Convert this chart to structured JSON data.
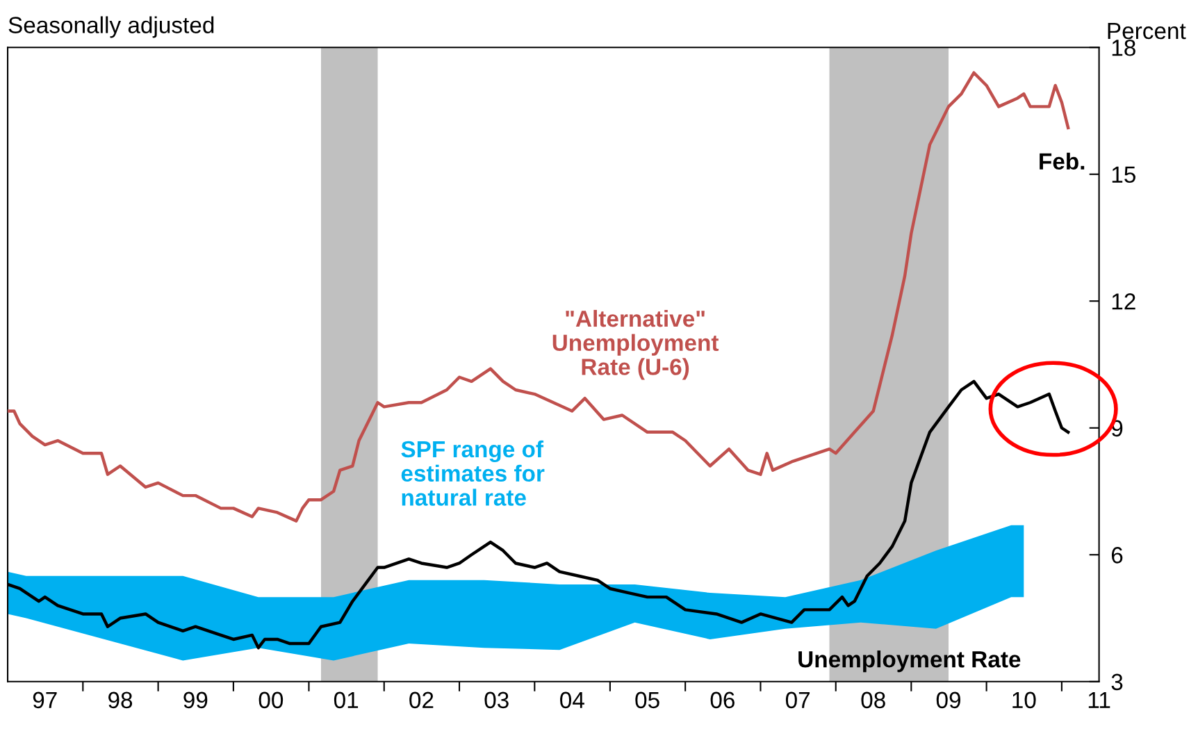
{
  "chart_data": {
    "type": "line",
    "subtitle": "Seasonally adjusted",
    "ylabel": "Percent",
    "xlim": [
      "1997-01",
      "2011-07"
    ],
    "ylim": [
      3,
      18
    ],
    "yticks": [
      3,
      6,
      9,
      12,
      15,
      18
    ],
    "xticks": [
      {
        "value": "1997-07",
        "label": "97"
      },
      {
        "value": "1998-07",
        "label": "98"
      },
      {
        "value": "1999-07",
        "label": "99"
      },
      {
        "value": "2000-07",
        "label": "00"
      },
      {
        "value": "2001-07",
        "label": "01"
      },
      {
        "value": "2002-07",
        "label": "02"
      },
      {
        "value": "2003-07",
        "label": "03"
      },
      {
        "value": "2004-07",
        "label": "04"
      },
      {
        "value": "2005-07",
        "label": "05"
      },
      {
        "value": "2006-07",
        "label": "06"
      },
      {
        "value": "2007-07",
        "label": "07"
      },
      {
        "value": "2008-07",
        "label": "08"
      },
      {
        "value": "2009-07",
        "label": "09"
      },
      {
        "value": "2010-07",
        "label": "10"
      },
      {
        "value": "2011-07",
        "label": "11"
      },
      {
        "value": "1998-01",
        "label": null
      },
      {
        "value": "1999-01",
        "label": null
      },
      {
        "value": "2000-01",
        "label": null
      },
      {
        "value": "2001-01",
        "label": null
      },
      {
        "value": "2002-01",
        "label": null
      },
      {
        "value": "2003-01",
        "label": null
      },
      {
        "value": "2004-01",
        "label": null
      },
      {
        "value": "2005-01",
        "label": null
      },
      {
        "value": "2006-01",
        "label": null
      },
      {
        "value": "2007-01",
        "label": null
      },
      {
        "value": "2008-01",
        "label": null
      },
      {
        "value": "2009-01",
        "label": null
      },
      {
        "value": "2010-01",
        "label": null
      },
      {
        "value": "2011-01",
        "label": null
      }
    ],
    "bands": [
      {
        "axis": "x",
        "from": "2001-03",
        "to": "2001-12",
        "color": "#c0c0c0"
      },
      {
        "axis": "x",
        "from": "2007-12",
        "to": "2009-07",
        "color": "#c0c0c0"
      }
    ],
    "series": [
      {
        "type": "area",
        "name": "SPF range of\nestimates for\nnatural rate",
        "color": "#00b0f0",
        "x": [
          "1997-01",
          "1997-04",
          "1999-05",
          "2000-05",
          "2001-05",
          "2002-05",
          "2003-05",
          "2004-05",
          "2005-05",
          "2006-05",
          "2007-05",
          "2008-05",
          "2009-05",
          "2010-05",
          "2010-07"
        ],
        "values": [
          null,
          null,
          null,
          null,
          null,
          null,
          null,
          null,
          null,
          null,
          null,
          null,
          null,
          null,
          null
        ],
        "upper": [
          5.6,
          5.5,
          5.5,
          5.0,
          5.0,
          5.4,
          5.4,
          5.3,
          5.3,
          5.1,
          5.0,
          5.4,
          6.1,
          6.7,
          6.7
        ],
        "lower": [
          4.6,
          4.5,
          3.5,
          3.8,
          3.5,
          3.9,
          3.8,
          3.75,
          4.4,
          4.0,
          4.25,
          4.4,
          4.25,
          5.0,
          5.0
        ]
      },
      {
        "name": "\"Alternative\"\nUnemployment\nRate (U-6)",
        "color": "#c0504d",
        "x": [
          "1997-01",
          "1997-02",
          "1997-03",
          "1997-05",
          "1997-07",
          "1997-09",
          "1998-01",
          "1998-04",
          "1998-05",
          "1998-07",
          "1998-11",
          "1999-01",
          "1999-05",
          "1999-07",
          "1999-11",
          "2000-01",
          "2000-04",
          "2000-05",
          "2000-08",
          "2000-11",
          "2000-12",
          "2001-01",
          "2001-03",
          "2001-05",
          "2001-06",
          "2001-08",
          "2001-09",
          "2001-11",
          "2001-12",
          "2002-01",
          "2002-05",
          "2002-07",
          "2002-11",
          "2003-01",
          "2003-03",
          "2003-06",
          "2003-08",
          "2003-10",
          "2004-01",
          "2004-04",
          "2004-07",
          "2004-09",
          "2004-12",
          "2005-03",
          "2005-07",
          "2005-11",
          "2006-01",
          "2006-05",
          "2006-08",
          "2006-11",
          "2007-01",
          "2007-02",
          "2007-03",
          "2007-06",
          "2007-12",
          "2008-01",
          "2008-04",
          "2008-07",
          "2008-10",
          "2008-12",
          "2009-01",
          "2009-04",
          "2009-07",
          "2009-09",
          "2009-11",
          "2010-01",
          "2010-03",
          "2010-06",
          "2010-07",
          "2010-08",
          "2010-11",
          "2010-12",
          "2011-01",
          "2011-02"
        ],
        "values": [
          9.4,
          9.4,
          9.1,
          8.8,
          8.6,
          8.7,
          8.4,
          8.4,
          7.9,
          8.1,
          7.6,
          7.7,
          7.4,
          7.4,
          7.1,
          7.1,
          6.9,
          7.1,
          7.0,
          6.8,
          7.1,
          7.3,
          7.3,
          7.5,
          8.0,
          8.1,
          8.7,
          9.3,
          9.6,
          9.5,
          9.6,
          9.6,
          9.9,
          10.2,
          10.1,
          10.4,
          10.1,
          9.9,
          9.8,
          9.6,
          9.4,
          9.7,
          9.2,
          9.3,
          8.9,
          8.9,
          8.7,
          8.1,
          8.5,
          8.0,
          7.9,
          8.4,
          8.0,
          8.2,
          8.5,
          8.4,
          8.9,
          9.4,
          11.2,
          12.6,
          13.6,
          15.7,
          16.6,
          16.9,
          17.4,
          17.1,
          16.6,
          16.8,
          16.9,
          16.6,
          16.6,
          17.1,
          16.7,
          16.1
        ]
      },
      {
        "name": "Unemployment Rate",
        "color": "#000000",
        "x": [
          "1997-01",
          "1997-03",
          "1997-06",
          "1997-07",
          "1997-09",
          "1998-01",
          "1998-04",
          "1998-05",
          "1998-07",
          "1998-11",
          "1999-01",
          "1999-05",
          "1999-07",
          "1999-11",
          "2000-01",
          "2000-04",
          "2000-05",
          "2000-06",
          "2000-08",
          "2000-10",
          "2001-01",
          "2001-03",
          "2001-06",
          "2001-08",
          "2001-10",
          "2001-12",
          "2002-01",
          "2002-05",
          "2002-07",
          "2002-11",
          "2003-01",
          "2003-03",
          "2003-06",
          "2003-08",
          "2003-10",
          "2004-01",
          "2004-03",
          "2004-05",
          "2004-08",
          "2004-11",
          "2005-01",
          "2005-04",
          "2005-07",
          "2005-10",
          "2006-01",
          "2006-06",
          "2006-10",
          "2007-01",
          "2007-06",
          "2007-08",
          "2007-12",
          "2008-02",
          "2008-03",
          "2008-04",
          "2008-06",
          "2008-08",
          "2008-10",
          "2008-12",
          "2009-01",
          "2009-04",
          "2009-07",
          "2009-09",
          "2009-11",
          "2010-01",
          "2010-03",
          "2010-06",
          "2010-08",
          "2010-11",
          "2010-12",
          "2011-01",
          "2011-02"
        ],
        "values": [
          5.3,
          5.2,
          4.9,
          5.0,
          4.8,
          4.6,
          4.6,
          4.3,
          4.5,
          4.6,
          4.4,
          4.2,
          4.3,
          4.1,
          4.0,
          4.1,
          3.8,
          4.0,
          4.0,
          3.9,
          3.9,
          4.3,
          4.4,
          4.9,
          5.3,
          5.7,
          5.7,
          5.9,
          5.8,
          5.7,
          5.8,
          6.0,
          6.3,
          6.1,
          5.8,
          5.7,
          5.8,
          5.6,
          5.5,
          5.4,
          5.2,
          5.1,
          5.0,
          5.0,
          4.7,
          4.6,
          4.4,
          4.6,
          4.4,
          4.7,
          4.7,
          5.0,
          4.8,
          4.9,
          5.5,
          5.8,
          6.2,
          6.8,
          7.7,
          8.9,
          9.5,
          9.9,
          10.1,
          9.7,
          9.8,
          9.5,
          9.6,
          9.8,
          9.4,
          9.0,
          8.9
        ]
      }
    ],
    "annotations": [
      "Feb."
    ],
    "grid": false,
    "legend": false
  }
}
